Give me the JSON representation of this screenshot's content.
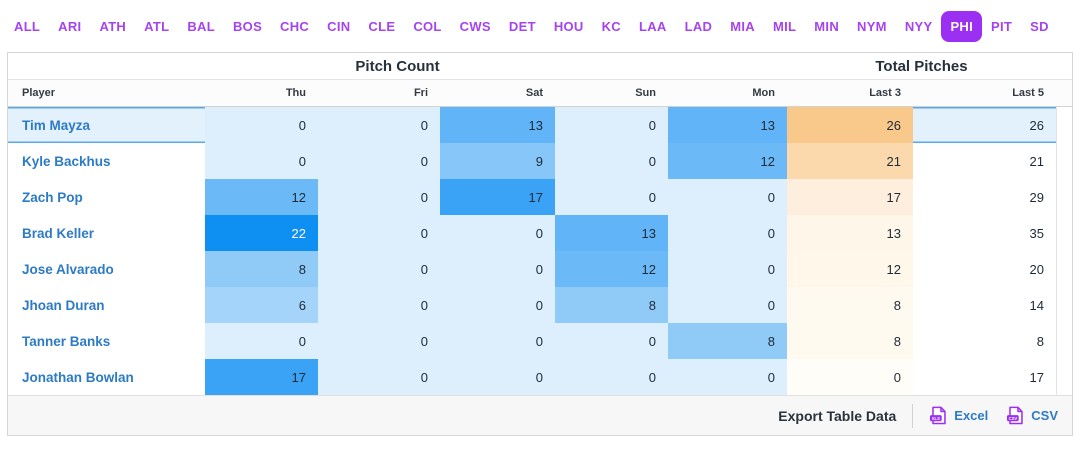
{
  "tabs": {
    "items": [
      "ALL",
      "ARI",
      "ATH",
      "ATL",
      "BAL",
      "BOS",
      "CHC",
      "CIN",
      "CLE",
      "COL",
      "CWS",
      "DET",
      "HOU",
      "KC",
      "LAA",
      "LAD",
      "MIA",
      "MIL",
      "MIN",
      "NYM",
      "NYY",
      "PHI",
      "PIT",
      "SD"
    ],
    "selected": "PHI"
  },
  "table": {
    "group_headers": {
      "pitch_count": "Pitch Count",
      "total_pitches": "Total Pitches"
    },
    "columns": {
      "player": "Player",
      "days": [
        "Thu",
        "Fri",
        "Sat",
        "Sun",
        "Mon"
      ],
      "last3": "Last 3",
      "last5": "Last 5"
    },
    "rows": [
      {
        "player": "Tim Mayza",
        "days": [
          0,
          0,
          13,
          0,
          13
        ],
        "last3": 26,
        "last5": 26,
        "highlighted": true
      },
      {
        "player": "Kyle Backhus",
        "days": [
          0,
          0,
          9,
          0,
          12
        ],
        "last3": 21,
        "last5": 21
      },
      {
        "player": "Zach Pop",
        "days": [
          12,
          0,
          17,
          0,
          0
        ],
        "last3": 17,
        "last5": 29
      },
      {
        "player": "Brad Keller",
        "days": [
          22,
          0,
          0,
          13,
          0
        ],
        "last3": 13,
        "last5": 35
      },
      {
        "player": "Jose Alvarado",
        "days": [
          8,
          0,
          0,
          12,
          0
        ],
        "last3": 12,
        "last5": 20
      },
      {
        "player": "Jhoan Duran",
        "days": [
          6,
          0,
          0,
          8,
          0
        ],
        "last3": 8,
        "last5": 14
      },
      {
        "player": "Tanner Banks",
        "days": [
          0,
          0,
          0,
          0,
          8
        ],
        "last3": 8,
        "last5": 8
      },
      {
        "player": "Jonathan Bowlan",
        "days": [
          17,
          0,
          0,
          0,
          0
        ],
        "last3": 0,
        "last5": 17
      }
    ]
  },
  "footer": {
    "export_label": "Export Table Data",
    "buttons": [
      {
        "label": "Excel",
        "icon": "xls-file-icon",
        "badge": "XLS"
      },
      {
        "label": "CSV",
        "icon": "csv-file-icon",
        "badge": "CSV"
      }
    ]
  },
  "colors": {
    "accent_purple": "#9b2ff2",
    "tab_text": "#a643f0",
    "player_link": "#2d7bc4",
    "highlight_bg": "#e3f1fd",
    "highlight_border": "#59a9e9",
    "pitch_scale": {
      "0": "#ddeefc",
      "6": "#a4d4f9",
      "8": "#90cbf8",
      "9": "#87c6f8",
      "12": "#6bbaf7",
      "13": "#60b4f7",
      "17": "#3aa3f5",
      "22": "#0e8ff2"
    },
    "pitch_white_text_min": 20,
    "last3_scale": {
      "0": "#fffdf7",
      "8": "#fefaf0",
      "12": "#fef7ea",
      "13": "#fef6e8",
      "17": "#fdeedd",
      "21": "#fbd9ad",
      "26": "#f9c98c"
    }
  }
}
